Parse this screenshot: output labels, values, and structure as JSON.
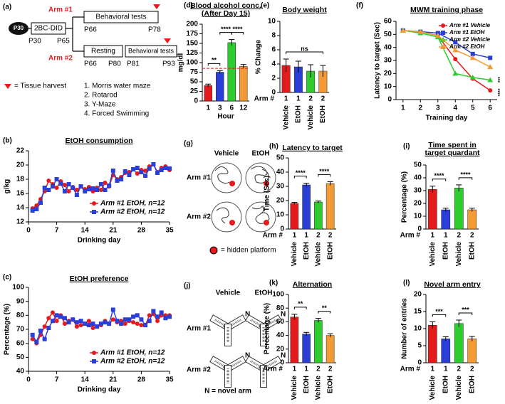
{
  "schematic": {
    "panel": "(a)",
    "mouse": "P30",
    "model": "2BC-DID",
    "arm1": "Arm #1",
    "arm2": "Arm #2",
    "p30": "P30",
    "p65": "P65",
    "arm1_start": "P66",
    "arm1_end": "P78",
    "arm1_box": "Behavioral tests",
    "arm2_start": "P66",
    "rest_box": "Resting",
    "rest_end": "P80",
    "arm2_behav_start": "P81",
    "arm2_box": "Behavioral tests",
    "arm2_end": "P93",
    "harvest": "= Tissue harvest",
    "tests": [
      "1. Morris water maze",
      "2. Rotarod",
      "3. Y-Maze",
      "4. Forced Swimming"
    ]
  },
  "maze_diagram": {
    "panel": "(g)",
    "columns": [
      "Vehicle",
      "EtOH"
    ],
    "rows": [
      "Arm #1",
      "Arm #2"
    ],
    "legend": "= hidden platform"
  },
  "ymaze_diagram": {
    "panel": "(j)",
    "columns": [
      "Vehicle",
      "EtOH"
    ],
    "rows": [
      "Arm #1",
      "Arm #2"
    ],
    "arm_mark": "N",
    "legend": "N = novel arm"
  },
  "chart_data": [
    {
      "type": "bar",
      "panel": "(d)",
      "title": [
        "Blood alcohol conc.",
        "(After Day 15)"
      ],
      "ylabel": "mg/dl",
      "xlabel": "Hour",
      "categories": [
        "1",
        "3",
        "6",
        "12"
      ],
      "values": [
        40,
        75,
        152,
        90
      ],
      "errors": [
        4,
        4,
        8,
        5
      ],
      "colors": [
        "#e41a1c",
        "#2a3fd6",
        "#2ecc2e",
        "#f39a35"
      ],
      "ylim": [
        0,
        200
      ],
      "yticks": [
        0,
        25,
        50,
        75,
        100,
        125,
        150,
        175,
        200
      ],
      "hline": 85,
      "hline_color": "#e41a1c",
      "annotations": [
        "**",
        "****",
        "****"
      ]
    },
    {
      "type": "bar",
      "panel": "(e)",
      "title": [
        "Body weight"
      ],
      "ylabel": "% Change",
      "x_header": "Arm #",
      "arms": [
        "1",
        "1",
        "2",
        "2"
      ],
      "categories": [
        "Vehicle",
        "EtOH",
        "Vehicle",
        "EtOH"
      ],
      "values": [
        3.8,
        3.6,
        3.0,
        3.0
      ],
      "errors": [
        0.9,
        0.8,
        0.9,
        0.8
      ],
      "colors": [
        "#e41a1c",
        "#2a3fd6",
        "#2ecc2e",
        "#f39a35"
      ],
      "ylim": [
        0,
        10
      ],
      "yticks": [
        0,
        2,
        4,
        6,
        8,
        10
      ],
      "annotations": [
        "ns"
      ]
    },
    {
      "type": "line",
      "panel": "(f)",
      "title": [
        "MWM training phase"
      ],
      "xlabel": "Training day",
      "ylabel": "Latency to target (Sec)",
      "x": [
        1,
        2,
        3,
        4,
        5,
        6
      ],
      "xlim": [
        0.6,
        6.4
      ],
      "xticks": [
        1,
        2,
        3,
        4,
        5,
        6
      ],
      "ylim": [
        0,
        60
      ],
      "yticks": [
        0,
        10,
        20,
        30,
        40,
        50,
        60
      ],
      "legend": "upper right",
      "series": [
        {
          "name": "Arm #1 Vehicle",
          "color": "#e41a1c",
          "marker": "circle",
          "values": [
            53,
            52,
            49,
            31,
            16,
            7
          ]
        },
        {
          "name": "Arm #1 EtOH",
          "color": "#2a3fd6",
          "marker": "square",
          "values": [
            53,
            52,
            51,
            44,
            35,
            32
          ]
        },
        {
          "name": "Arm #2 Vehicle",
          "color": "#2ecc2e",
          "marker": "triangle",
          "values": [
            53,
            51,
            48,
            20,
            17,
            15
          ]
        },
        {
          "name": "Arm #2 EtOH",
          "color": "#f39a35",
          "marker": "triangle",
          "values": [
            53,
            52,
            49,
            38,
            32,
            25
          ]
        }
      ],
      "annotations": [
        "***",
        "****"
      ]
    },
    {
      "type": "line",
      "panel": "(b)",
      "title": [
        "EtOH consumption"
      ],
      "xlabel": "Drinking day",
      "ylabel": "g/kg",
      "x": [
        1,
        2,
        3,
        4,
        5,
        6,
        7,
        8,
        9,
        10,
        11,
        12,
        13,
        14,
        15,
        16,
        17,
        18,
        19,
        20,
        21,
        22,
        23,
        24,
        25,
        26,
        27,
        28,
        29,
        30,
        31,
        32,
        33,
        34,
        35
      ],
      "xlim": [
        0,
        35
      ],
      "xticks": [
        0,
        7,
        14,
        21,
        28,
        35
      ],
      "ylim": [
        12,
        22
      ],
      "yticks": [
        12,
        14,
        16,
        18,
        20,
        22
      ],
      "legend": "lower right",
      "series": [
        {
          "name": "Arm #1 EtOH, n=12",
          "color": "#e41a1c",
          "marker": "circle",
          "values": [
            13.9,
            14.3,
            15.2,
            16.3,
            17.8,
            17.3,
            16.8,
            17.7,
            17.2,
            16.3,
            16.9,
            16.5,
            17.0,
            16.6,
            16.9,
            16.3,
            16.8,
            16.5,
            17.5,
            17.0,
            18.6,
            18.0,
            18.3,
            18.9,
            19.0,
            19.4,
            18.8,
            19.3,
            19.2,
            19.8,
            20.1,
            19.0,
            19.6,
            19.8,
            19.3
          ]
        },
        {
          "name": "Arm #2 EtOH, n=12",
          "color": "#2a3fd6",
          "marker": "square",
          "values": [
            13.6,
            13.8,
            14.7,
            16.8,
            16.5,
            17.0,
            18.0,
            17.4,
            16.3,
            17.3,
            16.8,
            15.8,
            17.0,
            16.3,
            16.6,
            16.7,
            16.5,
            17.3,
            16.5,
            17.1,
            19.2,
            17.8,
            18.0,
            19.1,
            18.6,
            19.4,
            19.6,
            19.0,
            18.5,
            19.5,
            20.1,
            18.9,
            19.3,
            19.6,
            19.5
          ]
        }
      ]
    },
    {
      "type": "line",
      "panel": "(c)",
      "title": [
        "EtOH preference"
      ],
      "xlabel": "Drinking day",
      "ylabel": "Percentage (%)",
      "x": [
        1,
        2,
        3,
        4,
        5,
        6,
        7,
        8,
        9,
        10,
        11,
        12,
        13,
        14,
        15,
        16,
        17,
        18,
        19,
        20,
        21,
        22,
        23,
        24,
        25,
        26,
        27,
        28,
        29,
        30,
        31,
        32,
        33,
        34,
        35
      ],
      "xlim": [
        0,
        35
      ],
      "xticks": [
        0,
        7,
        14,
        21,
        28,
        35
      ],
      "ylim": [
        40,
        100
      ],
      "yticks": [
        40,
        50,
        60,
        70,
        80,
        90,
        100
      ],
      "legend": "lower right",
      "series": [
        {
          "name": "Arm #1 EtOH, n=12",
          "color": "#e41a1c",
          "marker": "circle",
          "values": [
            63,
            60,
            66,
            72,
            78,
            82,
            76,
            80,
            74,
            76,
            77,
            72,
            73,
            74,
            76,
            71,
            72,
            73,
            76,
            74,
            77,
            75,
            76,
            74,
            76,
            75,
            74,
            73,
            73,
            80,
            81,
            76,
            80,
            80,
            80
          ]
        },
        {
          "name": "Arm #2 EtOH, n=12",
          "color": "#2a3fd6",
          "marker": "square",
          "values": [
            66,
            61,
            69,
            63,
            71,
            76,
            80,
            79,
            78,
            75,
            77,
            75,
            76,
            74,
            73,
            74,
            72,
            74,
            75,
            74,
            84,
            76,
            74,
            77,
            77,
            79,
            80,
            77,
            73,
            76,
            83,
            79,
            82,
            78,
            79
          ]
        }
      ]
    },
    {
      "type": "bar",
      "panel": "(h)",
      "title": [
        "Latency to target"
      ],
      "ylabel": "Time (Sec)",
      "x_header": "Arm #",
      "arms": [
        "1",
        "1",
        "2",
        "2"
      ],
      "categories": [
        "Vehicle",
        "EtOH",
        "Vehicle",
        "EtOH"
      ],
      "values": [
        18,
        31,
        19,
        32
      ],
      "errors": [
        0.7,
        1.2,
        0.7,
        1.3
      ],
      "colors": [
        "#e41a1c",
        "#2a3fd6",
        "#2ecc2e",
        "#f39a35"
      ],
      "ylim": [
        0,
        50
      ],
      "yticks": [
        0,
        10,
        20,
        30,
        40,
        50
      ],
      "annotations": [
        "****",
        "****"
      ]
    },
    {
      "type": "bar",
      "panel": "(i)",
      "title": [
        "Time spent in",
        "target quardant"
      ],
      "ylabel": "Percentage (%)",
      "x_header": "Arm #",
      "arms": [
        "1",
        "1",
        "2",
        "2"
      ],
      "categories": [
        "Vehicle",
        "EtOH",
        "Vehicle",
        "EtOH"
      ],
      "values": [
        31,
        15,
        32,
        15
      ],
      "errors": [
        2.5,
        1.3,
        2.5,
        1.3
      ],
      "colors": [
        "#e41a1c",
        "#2a3fd6",
        "#2ecc2e",
        "#f39a35"
      ],
      "ylim": [
        0,
        50
      ],
      "yticks": [
        0,
        10,
        20,
        30,
        40,
        50
      ],
      "annotations": [
        "****",
        "****"
      ]
    },
    {
      "type": "bar",
      "panel": "(k)",
      "title": [
        "Alternation"
      ],
      "ylabel": "Percentage (%)",
      "x_header": "Arm #",
      "arms": [
        "1",
        "1",
        "2",
        "2"
      ],
      "categories": [
        "Vehicle",
        "EtOH",
        "Vehicle",
        "EtOH"
      ],
      "values": [
        67,
        42,
        62,
        40
      ],
      "errors": [
        4,
        2.5,
        3,
        2.5
      ],
      "colors": [
        "#e41a1c",
        "#2a3fd6",
        "#2ecc2e",
        "#f39a35"
      ],
      "ylim": [
        0,
        100
      ],
      "yticks": [
        0,
        20,
        40,
        60,
        80,
        100
      ],
      "annotations": [
        "**",
        "**"
      ]
    },
    {
      "type": "bar",
      "panel": "(l)",
      "title": [
        "Novel arm entry"
      ],
      "ylabel": "Number of entries",
      "x_header": "Arm #",
      "arms": [
        "1",
        "1",
        "2",
        "2"
      ],
      "categories": [
        "Vehicle",
        "EtOH",
        "Vehicle",
        "EtOH"
      ],
      "values": [
        11,
        7,
        11.5,
        7
      ],
      "errors": [
        1,
        0.6,
        1,
        0.7
      ],
      "colors": [
        "#e41a1c",
        "#2a3fd6",
        "#2ecc2e",
        "#f39a35"
      ],
      "ylim": [
        0,
        20
      ],
      "yticks": [
        0,
        5,
        10,
        15,
        20
      ],
      "annotations": [
        "***",
        "***"
      ]
    }
  ]
}
